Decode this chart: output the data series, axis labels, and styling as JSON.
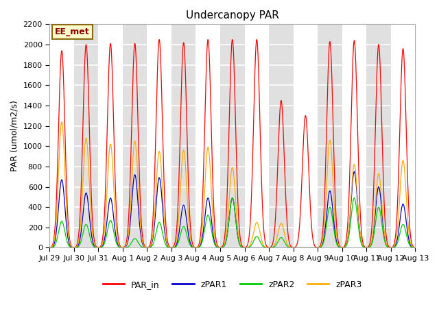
{
  "title": "Undercanopy PAR",
  "ylabel": "PAR (umol/m2/s)",
  "annotation": "EE_met",
  "ylim": [
    0,
    2200
  ],
  "plot_bg_color": "#e0e0e0",
  "legend_labels": [
    "PAR_in",
    "zPAR1",
    "zPAR2",
    "zPAR3"
  ],
  "legend_colors": [
    "#ff0000",
    "#0000cc",
    "#00cc00",
    "#ffaa00"
  ],
  "xtick_labels": [
    "Jul 29",
    "Jul 30",
    "Jul 31",
    "Aug 1",
    "Aug 2",
    "Aug 3",
    "Aug 4",
    "Aug 5",
    "Aug 6",
    "Aug 7",
    "Aug 8",
    "Aug 9",
    "Aug 10",
    "Aug 11",
    "Aug 12",
    "Aug 13"
  ],
  "num_days": 16,
  "PAR_in_peaks": [
    1940,
    2000,
    2010,
    2010,
    2050,
    2020,
    2050,
    2050,
    2050,
    1450,
    1300,
    2030,
    2040,
    2000,
    1960
  ],
  "zPAR1_peaks": [
    670,
    540,
    490,
    720,
    690,
    420,
    490,
    490,
    0,
    0,
    0,
    560,
    750,
    600,
    430
  ],
  "zPAR2_peaks": [
    260,
    230,
    270,
    90,
    250,
    210,
    320,
    490,
    110,
    100,
    0,
    400,
    490,
    400,
    230
  ],
  "zPAR3_peaks": [
    1240,
    1080,
    1020,
    1050,
    950,
    960,
    990,
    790,
    250,
    240,
    0,
    1060,
    820,
    730,
    860
  ]
}
